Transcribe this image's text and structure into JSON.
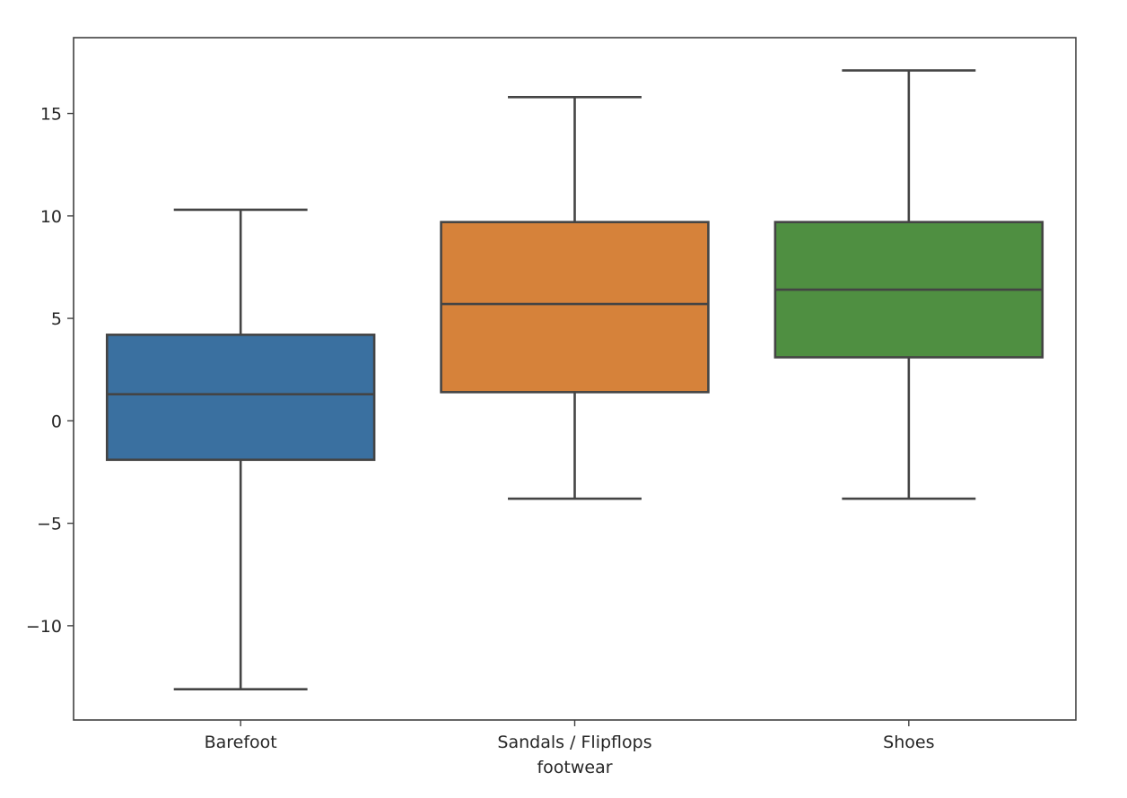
{
  "chart_data": {
    "type": "box",
    "xlabel": "footwear",
    "ylabel": "",
    "ylim": [
      -14.6,
      18.7
    ],
    "yticks": [
      -10,
      -5,
      0,
      5,
      10,
      15
    ],
    "ytick_labels": [
      "−10",
      "−5",
      "0",
      "5",
      "10",
      "15"
    ],
    "grid": false,
    "categories": [
      "Barefoot",
      "Sandals / Flipflops",
      "Shoes"
    ],
    "boxes": [
      {
        "category": "Barefoot",
        "whisker_low": -13.1,
        "q1": -1.9,
        "median": 1.3,
        "q3": 4.2,
        "whisker_high": 10.3,
        "color": "#3a70a0"
      },
      {
        "category": "Sandals / Flipflops",
        "whisker_low": -3.8,
        "q1": 1.4,
        "median": 5.7,
        "q3": 9.7,
        "whisker_high": 15.8,
        "color": "#d6823a"
      },
      {
        "category": "Shoes",
        "whisker_low": -3.8,
        "q1": 3.1,
        "median": 6.4,
        "q3": 9.7,
        "whisker_high": 17.1,
        "color": "#4f8f41"
      }
    ]
  }
}
